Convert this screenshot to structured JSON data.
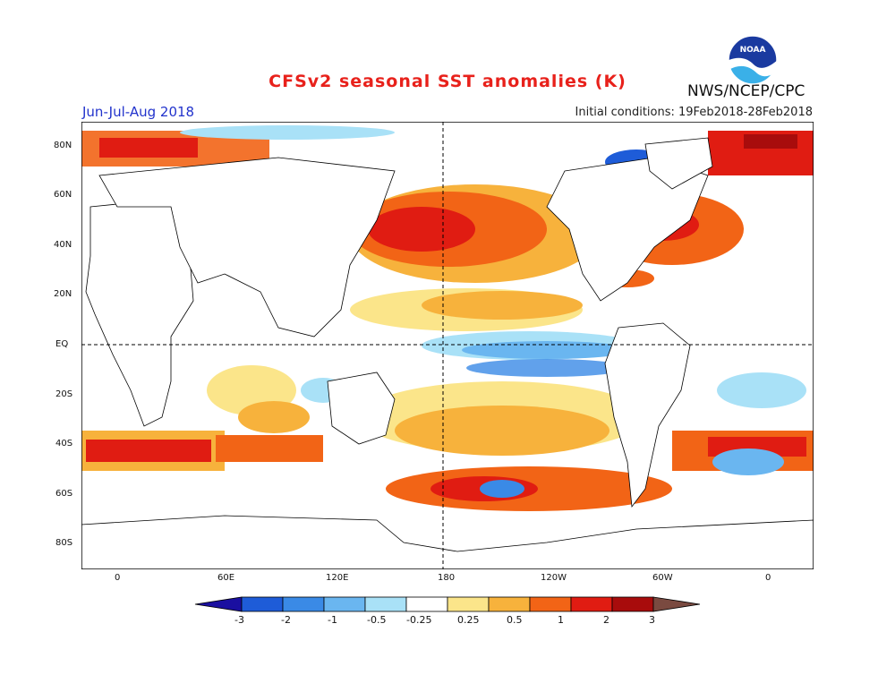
{
  "header": {
    "title": "CFSv2 seasonal SST anomalies (K)",
    "season": "Jun-Jul-Aug 2018",
    "initial_conditions": "Initial conditions: 19Feb2018-28Feb2018",
    "agency": "NWS/NCEP/CPC",
    "logo_text": "NOAA"
  },
  "map": {
    "lat_labels": [
      "80N",
      "60N",
      "40N",
      "20N",
      "EQ",
      "20S",
      "40S",
      "60S",
      "80S"
    ],
    "lon_labels": [
      "0",
      "60E",
      "120E",
      "180",
      "120W",
      "60W",
      "0"
    ]
  },
  "colorbar": {
    "labels": [
      "-3",
      "-2",
      "-1",
      "-0.5",
      "-0.25",
      "0.25",
      "0.5",
      "1",
      "2",
      "3"
    ],
    "colors": [
      "#1a0fa0",
      "#1e5cd8",
      "#3a8ae6",
      "#6ab6f0",
      "#a9e1f7",
      "#ffffff",
      "#fbe58a",
      "#f7b23c",
      "#f26416",
      "#e01c12",
      "#a80c0c",
      "#7a4a40"
    ]
  },
  "colors": {
    "title": "#e8211b",
    "season": "#2233cc",
    "warm": "#f26416",
    "cool": "#3a8ae6"
  }
}
